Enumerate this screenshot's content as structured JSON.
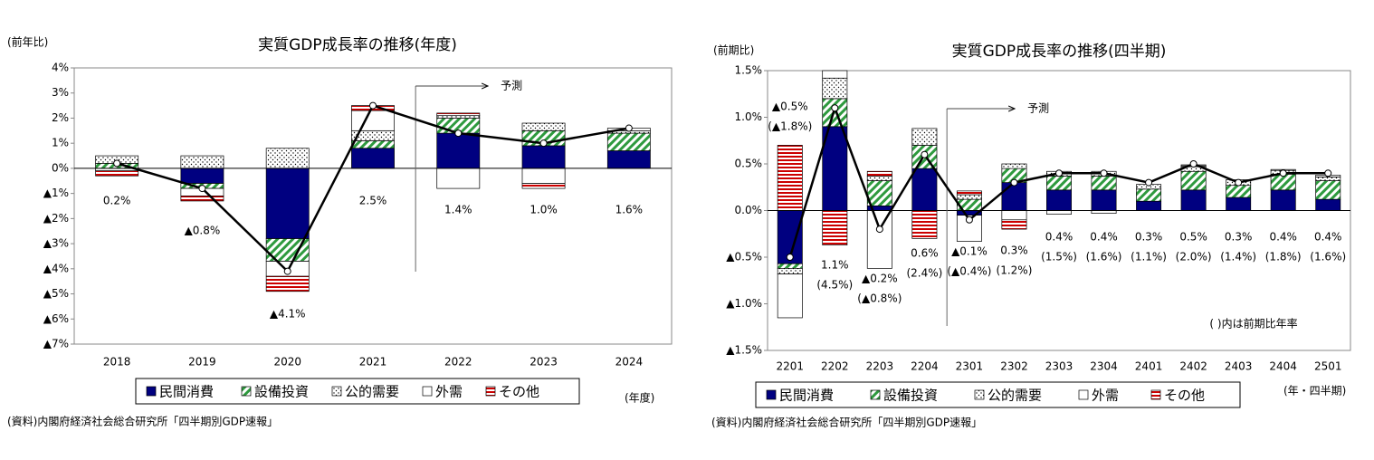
{
  "chart_data": [
    {
      "type": "bar",
      "stacked": true,
      "title": "実質GDP成長率の推移(年度)",
      "y_label": "(前年比)",
      "x_label": "(年度)",
      "annotation": "予測",
      "source": "(資料)内閣府経済社会総合研究所「四半期別GDP速報」",
      "categories": [
        "2018",
        "2019",
        "2020",
        "2021",
        "2022",
        "2023",
        "2024"
      ],
      "ylim": [
        -7,
        4
      ],
      "yticks": [
        {
          "value": 4,
          "label": "4%"
        },
        {
          "value": 3,
          "label": "3%"
        },
        {
          "value": 2,
          "label": "2%"
        },
        {
          "value": 1,
          "label": "1%"
        },
        {
          "value": 0,
          "label": "0%"
        },
        {
          "value": -1,
          "label": "▲1%"
        },
        {
          "value": -2,
          "label": "▲2%"
        },
        {
          "value": -3,
          "label": "▲3%"
        },
        {
          "value": -4,
          "label": "▲4%"
        },
        {
          "value": -5,
          "label": "▲5%"
        },
        {
          "value": -6,
          "label": "▲6%"
        },
        {
          "value": -7,
          "label": "▲7%"
        }
      ],
      "series": [
        {
          "name": "民間消費",
          "color": "#000080",
          "pattern": "solid",
          "values": [
            0.0,
            -0.6,
            -2.8,
            0.8,
            1.4,
            0.9,
            0.7
          ]
        },
        {
          "name": "設備投資",
          "color": "#2e9a3e",
          "pattern": "hatch",
          "values": [
            0.2,
            -0.2,
            -0.9,
            0.3,
            0.6,
            0.6,
            0.7
          ]
        },
        {
          "name": "公的需要",
          "color": "#000000",
          "pattern": "dots",
          "values": [
            0.3,
            0.5,
            0.8,
            0.4,
            0.1,
            0.3,
            0.1
          ]
        },
        {
          "name": "外需",
          "color": "#000000",
          "pattern": "none",
          "values": [
            -0.1,
            -0.3,
            -0.6,
            0.8,
            -0.8,
            -0.6,
            0.1
          ]
        },
        {
          "name": "その他",
          "color": "#cc0000",
          "pattern": "stripes",
          "values": [
            -0.2,
            -0.2,
            -0.6,
            0.2,
            0.1,
            -0.2,
            0.0
          ]
        }
      ],
      "line": {
        "color": "#000000",
        "values": [
          0.2,
          -0.8,
          -4.1,
          2.5,
          1.4,
          1.0,
          1.6
        ],
        "value_labels": [
          "0.2%",
          "▲0.8%",
          "▲4.1%",
          "2.5%",
          "1.4%",
          "1.0%",
          "1.6%"
        ]
      }
    },
    {
      "type": "bar",
      "stacked": true,
      "title": "実質GDP成長率の推移(四半期)",
      "y_label": "(前期比)",
      "x_label": "(年・四半期)",
      "annotation": "予測",
      "note": "(  )内は前期比年率",
      "source": "(資料)内閣府経済社会総合研究所「四半期別GDP速報」",
      "categories": [
        "2201",
        "2202",
        "2203",
        "2204",
        "2301",
        "2302",
        "2303",
        "2304",
        "2401",
        "2402",
        "2403",
        "2404",
        "2501"
      ],
      "ylim": [
        -1.5,
        1.5
      ],
      "yticks": [
        {
          "value": 1.5,
          "label": "1.5%"
        },
        {
          "value": 1.0,
          "label": "1.0%"
        },
        {
          "value": 0.5,
          "label": "0.5%"
        },
        {
          "value": 0,
          "label": "0.0%"
        },
        {
          "value": -0.5,
          "label": "▲0.5%"
        },
        {
          "value": -1.0,
          "label": "▲1.0%"
        },
        {
          "value": -1.5,
          "label": "▲1.5%"
        }
      ],
      "series": [
        {
          "name": "民間消費",
          "color": "#000080",
          "pattern": "solid",
          "values": [
            -0.57,
            0.9,
            0.05,
            0.45,
            -0.05,
            0.3,
            0.22,
            0.22,
            0.1,
            0.22,
            0.14,
            0.22,
            0.12
          ]
        },
        {
          "name": "設備投資",
          "color": "#2e9a3e",
          "pattern": "hatch",
          "values": [
            -0.05,
            0.3,
            0.27,
            0.25,
            0.12,
            0.15,
            0.15,
            0.15,
            0.13,
            0.2,
            0.13,
            0.17,
            0.2
          ]
        },
        {
          "name": "公的需要",
          "color": "#000000",
          "pattern": "dots",
          "values": [
            -0.06,
            0.22,
            0.05,
            0.18,
            0.05,
            0.05,
            0.05,
            0.05,
            0.05,
            0.05,
            0.06,
            0.04,
            0.04
          ]
        },
        {
          "name": "外需",
          "color": "#000000",
          "pattern": "none",
          "values": [
            -0.47,
            0.08,
            -0.62,
            0.0,
            -0.28,
            -0.1,
            -0.04,
            -0.03,
            0.0,
            0.01,
            0.0,
            0.01,
            0.02
          ]
        },
        {
          "name": "その他",
          "color": "#cc0000",
          "pattern": "stripes",
          "values": [
            0.7,
            -0.37,
            0.05,
            -0.3,
            0.04,
            -0.1,
            0.0,
            0.0,
            0.0,
            0.01,
            0.0,
            0.0,
            0.0
          ]
        }
      ],
      "line": {
        "color": "#000000",
        "values": [
          -0.5,
          1.1,
          -0.2,
          0.6,
          -0.1,
          0.3,
          0.4,
          0.4,
          0.3,
          0.5,
          0.3,
          0.4,
          0.4
        ],
        "value_labels": [
          "▲0.5%",
          "1.1%",
          "▲0.2%",
          "0.6%",
          "▲0.1%",
          "0.3%",
          "0.4%",
          "0.4%",
          "0.3%",
          "0.5%",
          "0.3%",
          "0.4%",
          "0.4%"
        ]
      },
      "annual_rates": {
        "values": [
          -1.8,
          4.5,
          -0.8,
          2.4,
          -0.4,
          1.2,
          1.5,
          1.6,
          1.1,
          2.0,
          1.4,
          1.8,
          1.6
        ],
        "value_labels": [
          "(▲1.8%)",
          "(4.5%)",
          "(▲0.8%)",
          "(2.4%)",
          "(▲0.4%)",
          "(1.2%)",
          "(1.5%)",
          "(1.6%)",
          "(1.1%)",
          "(2.0%)",
          "(1.4%)",
          "(1.8%)",
          "(1.6%)"
        ]
      }
    }
  ]
}
